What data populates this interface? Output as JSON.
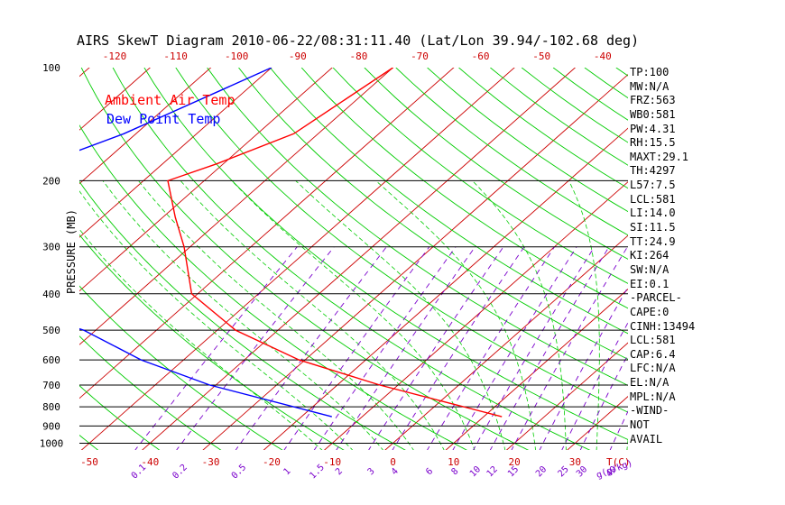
{
  "chart_data": {
    "type": "line",
    "title": "AIRS SkewT Diagram 2010-06-22/08:31:11.40 (Lat/Lon 39.94/-102.68 deg)",
    "ylabel": "PRESSURE (MB)",
    "xlabel": "T(C)",
    "mixing_ratio_unit_label": "g(g/kg)",
    "legend": [
      "Ambient Air Temp",
      "Dew Point Temp"
    ],
    "pressure_ticks": [
      100,
      200,
      300,
      400,
      500,
      600,
      700,
      800,
      900,
      1000
    ],
    "bottom_temp_ticks": [
      -50,
      -40,
      -30,
      -20,
      -10,
      0,
      10,
      20,
      30
    ],
    "top_temp_ticks": [
      -120,
      -110,
      -100,
      -90,
      -80,
      -70,
      -60,
      -50,
      -40
    ],
    "mixing_ratio_ticks": [
      "0.1",
      "0.2",
      "0.5",
      "1",
      "1.5",
      "2",
      "3",
      "4",
      "6",
      "8",
      "10",
      "12",
      "15",
      "20",
      "25",
      "30",
      "40"
    ],
    "y_scale": "log",
    "ylim": [
      1000,
      100
    ],
    "series": [
      {
        "name": "Ambient Air Temp",
        "color": "#ff0000",
        "pressure": [
          100,
          150,
          180,
          200,
          250,
          300,
          400,
          500,
          600,
          700,
          850
        ],
        "values": [
          -70,
          -74,
          -81,
          -86,
          -78,
          -71,
          -61,
          -47,
          -31,
          -13,
          13
        ]
      },
      {
        "name": "Dew Point Temp",
        "color": "#0000ff",
        "pressure": [
          100,
          150,
          200,
          250,
          300,
          400,
          500,
          600,
          700,
          850
        ],
        "values": [
          -90,
          -102,
          -114,
          -116,
          -114,
          -98,
          -72,
          -57,
          -41,
          -15
        ]
      }
    ],
    "parameters": [
      "TP:100",
      "MW:N/A",
      "FRZ:563",
      "WB0:581",
      "PW:4.31",
      "RH:15.5",
      "MAXT:29.1",
      "TH:4297",
      "L57:7.5",
      "LCL:581",
      "LI:14.0",
      "SI:11.5",
      "TT:24.9",
      "KI:264",
      "SW:N/A",
      "EI:0.1",
      "-PARCEL-",
      "CAPE:0",
      "CINH:13494",
      "LCL:581",
      "CAP:6.4",
      "LFC:N/A",
      "EL:N/A",
      "MPL:N/A",
      "-WIND-",
      "NOT",
      "AVAIL"
    ],
    "colors": {
      "isotherm": "#cc0000",
      "dry_adiabat": "#00cc00",
      "moist_adiabat": "#00cc00",
      "mixing_ratio": "#7a00cc",
      "tick_label_red": "#cc0000",
      "tick_label_purple": "#7a00cc"
    },
    "grid": true
  }
}
